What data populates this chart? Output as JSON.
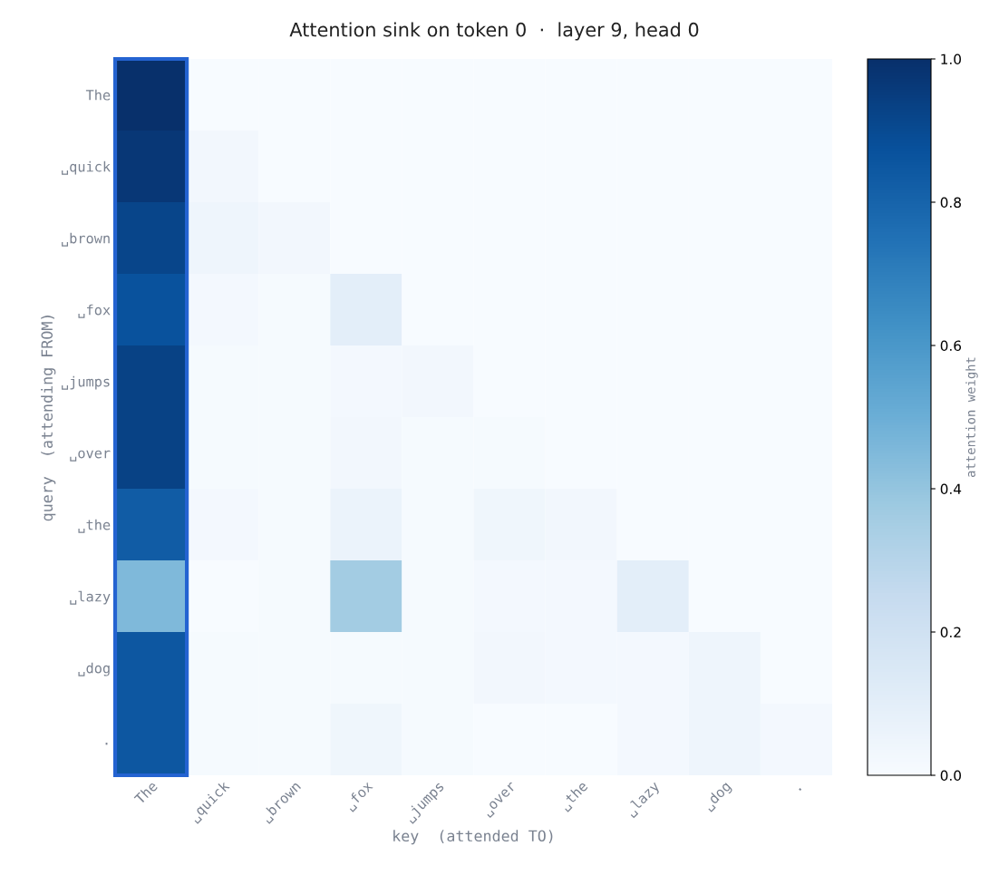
{
  "chart_data": {
    "type": "heatmap",
    "title": "Attention sink on token 0  ·  layer 9, head 0",
    "xlabel": "key  (attended TO)",
    "ylabel": "query  (attending FROM)",
    "clabel": "attention weight",
    "categories": [
      "The",
      "␣quick",
      "␣brown",
      "␣fox",
      "␣jumps",
      "␣over",
      "␣the",
      "␣lazy",
      "␣dog",
      "."
    ],
    "y_categories": [
      "The",
      "␣quick",
      "␣brown",
      "␣fox",
      "␣jumps",
      "␣over",
      "␣the",
      "␣lazy",
      "␣dog",
      "."
    ],
    "cells": [
      [
        1.0,
        0,
        0,
        0,
        0,
        0,
        0,
        0,
        0,
        0
      ],
      [
        0.97,
        0.03,
        0,
        0,
        0,
        0,
        0,
        0,
        0,
        0
      ],
      [
        0.92,
        0.05,
        0.03,
        0,
        0,
        0,
        0,
        0,
        0,
        0
      ],
      [
        0.87,
        0.02,
        0.01,
        0.1,
        0,
        0,
        0,
        0,
        0,
        0
      ],
      [
        0.93,
        0.01,
        0.01,
        0.02,
        0.03,
        0,
        0,
        0,
        0,
        0
      ],
      [
        0.93,
        0.01,
        0.01,
        0.03,
        0.01,
        0.01,
        0,
        0,
        0,
        0
      ],
      [
        0.83,
        0.02,
        0.01,
        0.06,
        0.01,
        0.04,
        0.03,
        0,
        0,
        0
      ],
      [
        0.45,
        0.0,
        0.01,
        0.36,
        0.01,
        0.02,
        0.02,
        0.1,
        0,
        0
      ],
      [
        0.85,
        0.01,
        0.01,
        0.01,
        0.01,
        0.03,
        0.02,
        0.02,
        0.05,
        0
      ],
      [
        0.85,
        0.01,
        0.01,
        0.04,
        0.01,
        0.0,
        0.0,
        0.02,
        0.05,
        0.02
      ]
    ],
    "clim": [
      0.0,
      1.0
    ],
    "cticks": [
      {
        "value": 0,
        "label": "0.0"
      },
      0.2,
      0.4,
      0.6,
      0.8,
      {
        "value": 1,
        "label": "1.0"
      }
    ]
  }
}
